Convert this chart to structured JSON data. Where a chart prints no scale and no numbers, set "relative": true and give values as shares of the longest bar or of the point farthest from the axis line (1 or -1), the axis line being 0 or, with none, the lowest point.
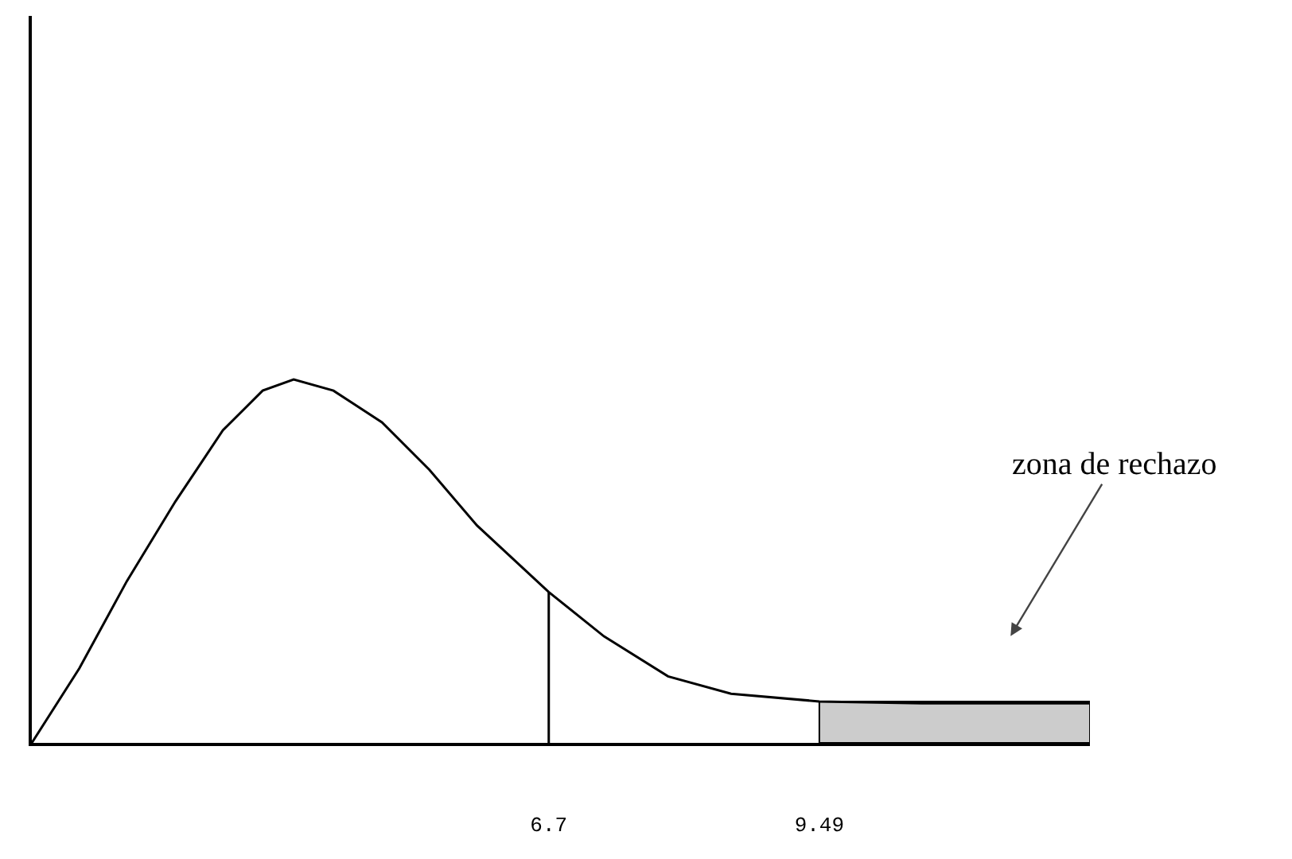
{
  "chart_data": {
    "type": "line",
    "relative": true,
    "x": [
      1.37,
      1.86,
      2.35,
      2.85,
      3.34,
      3.75,
      4.07,
      4.48,
      4.98,
      5.47,
      5.96,
      6.7,
      7.27,
      7.93,
      8.58,
      9.49,
      10.55,
      12.28
    ],
    "series": [
      {
        "color": "#000000",
        "values": [
          0,
          0.205,
          0.445,
          0.664,
          0.86,
          0.969,
          1,
          0.969,
          0.882,
          0.751,
          0.598,
          0.415,
          0.293,
          0.183,
          0.135,
          0.114,
          0.109,
          0.109
        ]
      }
    ],
    "xlim": [
      1.37,
      12.28
    ],
    "xticks": [
      6.7,
      9.49
    ],
    "tick_labels": "x",
    "grid": false,
    "marker": "none",
    "line_style": "solid",
    "ref_lines": [
      {
        "axis": "x",
        "value": 6.7,
        "color": "#000000"
      }
    ],
    "bands": [
      {
        "axis": "x",
        "from": 9.49,
        "to": 12.28,
        "color": "#cccccc"
      }
    ],
    "annotations": [
      "zona de rechazo"
    ]
  }
}
